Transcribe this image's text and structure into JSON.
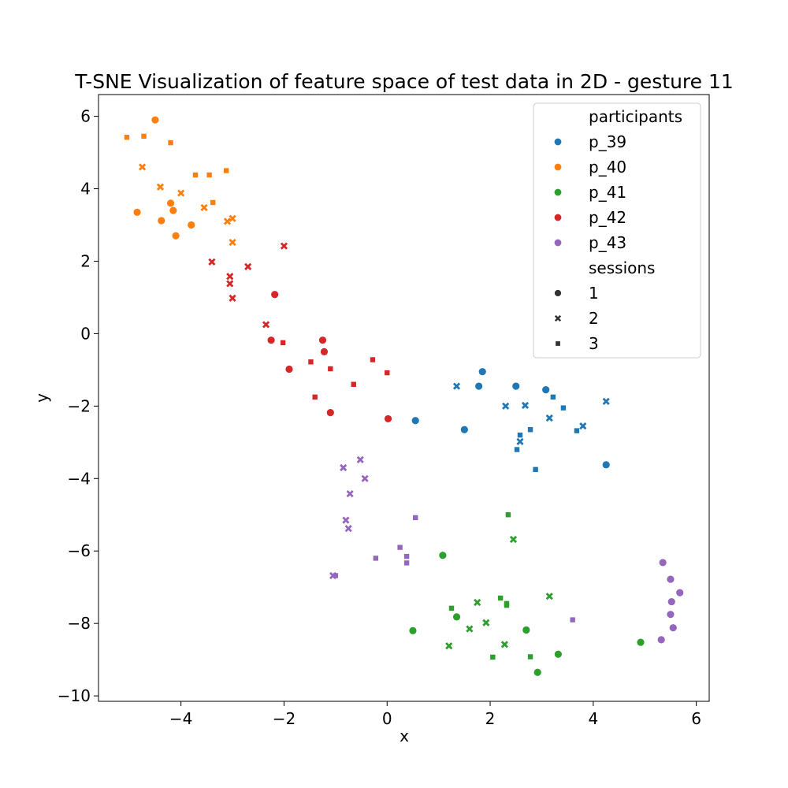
{
  "chart_data": {
    "type": "scatter",
    "title": "T-SNE Visualization of feature space of test data in 2D - gesture 11",
    "xlabel": "x",
    "ylabel": "y",
    "xlim": [
      -5.6,
      6.25
    ],
    "ylim": [
      -10.15,
      6.6
    ],
    "xticks": [
      -4,
      -2,
      0,
      2,
      4,
      6
    ],
    "yticks": [
      6,
      4,
      2,
      0,
      -2,
      -4,
      -6,
      -8,
      -10
    ],
    "xtick_labels": [
      "−4",
      "−2",
      "0",
      "2",
      "4",
      "6"
    ],
    "ytick_labels": [
      "6",
      "4",
      "2",
      "0",
      "−2",
      "−4",
      "−6",
      "−8",
      "−10"
    ],
    "grid": false,
    "legend": {
      "placement": "top-right",
      "hue_title": "participants",
      "style_title": "sessions",
      "participants": [
        {
          "label": "p_39",
          "color": "#1f77b4"
        },
        {
          "label": "p_40",
          "color": "#ff7f0e"
        },
        {
          "label": "p_41",
          "color": "#2ca02c"
        },
        {
          "label": "p_42",
          "color": "#d62728"
        },
        {
          "label": "p_43",
          "color": "#9467bd"
        }
      ],
      "sessions": [
        {
          "label": "1",
          "marker": "circle"
        },
        {
          "label": "2",
          "marker": "x"
        },
        {
          "label": "3",
          "marker": "square"
        }
      ]
    },
    "series": [
      {
        "participant": "p_39",
        "session": "1",
        "points": [
          [
            1.85,
            -1.05
          ],
          [
            1.78,
            -1.45
          ],
          [
            2.5,
            -1.45
          ],
          [
            3.08,
            -1.55
          ],
          [
            0.55,
            -2.4
          ],
          [
            1.5,
            -2.65
          ],
          [
            4.25,
            -3.62
          ]
        ]
      },
      {
        "participant": "p_39",
        "session": "2",
        "points": [
          [
            1.35,
            -1.45
          ],
          [
            2.3,
            -2.0
          ],
          [
            2.68,
            -1.98
          ],
          [
            3.15,
            -2.33
          ],
          [
            3.8,
            -2.55
          ],
          [
            4.25,
            -1.87
          ],
          [
            2.58,
            -2.98
          ]
        ]
      },
      {
        "participant": "p_39",
        "session": "3",
        "points": [
          [
            3.22,
            -1.75
          ],
          [
            3.42,
            -2.05
          ],
          [
            2.78,
            -2.65
          ],
          [
            3.68,
            -2.68
          ],
          [
            2.58,
            -2.8
          ],
          [
            2.52,
            -3.2
          ],
          [
            2.88,
            -3.75
          ]
        ]
      },
      {
        "participant": "p_40",
        "session": "1",
        "points": [
          [
            -4.5,
            5.9
          ],
          [
            -4.85,
            3.35
          ],
          [
            -4.2,
            3.6
          ],
          [
            -4.15,
            3.4
          ],
          [
            -4.38,
            3.12
          ],
          [
            -3.8,
            3.0
          ],
          [
            -4.1,
            2.7
          ]
        ]
      },
      {
        "participant": "p_40",
        "session": "2",
        "points": [
          [
            -4.75,
            4.6
          ],
          [
            -4.4,
            4.05
          ],
          [
            -4.0,
            3.88
          ],
          [
            -3.55,
            3.48
          ],
          [
            -3.1,
            3.1
          ],
          [
            -3.0,
            3.18
          ],
          [
            -3.0,
            2.52
          ]
        ]
      },
      {
        "participant": "p_40",
        "session": "3",
        "points": [
          [
            -5.05,
            5.42
          ],
          [
            -4.72,
            5.45
          ],
          [
            -4.2,
            5.27
          ],
          [
            -3.72,
            4.38
          ],
          [
            -3.45,
            4.38
          ],
          [
            -3.12,
            4.5
          ],
          [
            -3.38,
            3.62
          ]
        ]
      },
      {
        "participant": "p_42",
        "session": "1",
        "points": [
          [
            -2.18,
            1.08
          ],
          [
            -2.25,
            -0.18
          ],
          [
            -1.9,
            -0.98
          ],
          [
            -1.25,
            -0.18
          ],
          [
            -1.22,
            -0.5
          ],
          [
            -1.1,
            -2.18
          ],
          [
            0.02,
            -2.35
          ]
        ]
      },
      {
        "participant": "p_42",
        "session": "2",
        "points": [
          [
            -3.4,
            1.98
          ],
          [
            -3.05,
            1.58
          ],
          [
            -3.05,
            1.38
          ],
          [
            -3.0,
            0.98
          ],
          [
            -2.7,
            1.85
          ],
          [
            -2.0,
            2.42
          ],
          [
            -2.35,
            0.25
          ]
        ]
      },
      {
        "participant": "p_42",
        "session": "3",
        "points": [
          [
            -2.02,
            -0.25
          ],
          [
            -1.48,
            -0.78
          ],
          [
            -1.1,
            -0.97
          ],
          [
            -0.28,
            -0.72
          ],
          [
            0.0,
            -1.08
          ],
          [
            -0.65,
            -1.4
          ],
          [
            -1.4,
            -1.75
          ]
        ]
      },
      {
        "participant": "p_43",
        "session": "1",
        "points": [
          [
            5.35,
            -6.32
          ],
          [
            5.5,
            -6.78
          ],
          [
            5.68,
            -7.15
          ],
          [
            5.52,
            -7.4
          ],
          [
            5.5,
            -7.75
          ],
          [
            5.55,
            -8.12
          ],
          [
            5.32,
            -8.45
          ]
        ]
      },
      {
        "participant": "p_43",
        "session": "2",
        "points": [
          [
            -0.52,
            -3.48
          ],
          [
            -0.85,
            -3.7
          ],
          [
            -0.43,
            -4.0
          ],
          [
            -0.72,
            -4.42
          ],
          [
            -0.8,
            -5.15
          ],
          [
            -0.75,
            -5.38
          ],
          [
            -1.05,
            -6.68
          ]
        ]
      },
      {
        "participant": "p_43",
        "session": "3",
        "points": [
          [
            0.55,
            -5.08
          ],
          [
            0.25,
            -5.9
          ],
          [
            0.38,
            -6.15
          ],
          [
            0.38,
            -6.33
          ],
          [
            -0.22,
            -6.2
          ],
          [
            -1.0,
            -6.68
          ],
          [
            3.6,
            -7.9
          ]
        ]
      },
      {
        "participant": "p_41",
        "session": "1",
        "points": [
          [
            1.08,
            -6.12
          ],
          [
            0.5,
            -8.2
          ],
          [
            1.35,
            -7.82
          ],
          [
            2.7,
            -8.18
          ],
          [
            3.32,
            -8.85
          ],
          [
            2.92,
            -9.35
          ],
          [
            4.92,
            -8.52
          ]
        ]
      },
      {
        "participant": "p_41",
        "session": "2",
        "points": [
          [
            2.45,
            -5.68
          ],
          [
            1.75,
            -7.42
          ],
          [
            1.92,
            -7.98
          ],
          [
            1.6,
            -8.15
          ],
          [
            1.2,
            -8.62
          ],
          [
            2.28,
            -8.58
          ],
          [
            3.15,
            -7.25
          ]
        ]
      },
      {
        "participant": "p_41",
        "session": "3",
        "points": [
          [
            2.35,
            -5.0
          ],
          [
            1.25,
            -7.58
          ],
          [
            2.2,
            -7.3
          ],
          [
            2.32,
            -7.45
          ],
          [
            2.32,
            -7.5
          ],
          [
            2.05,
            -8.93
          ],
          [
            2.78,
            -8.92
          ]
        ]
      }
    ]
  }
}
